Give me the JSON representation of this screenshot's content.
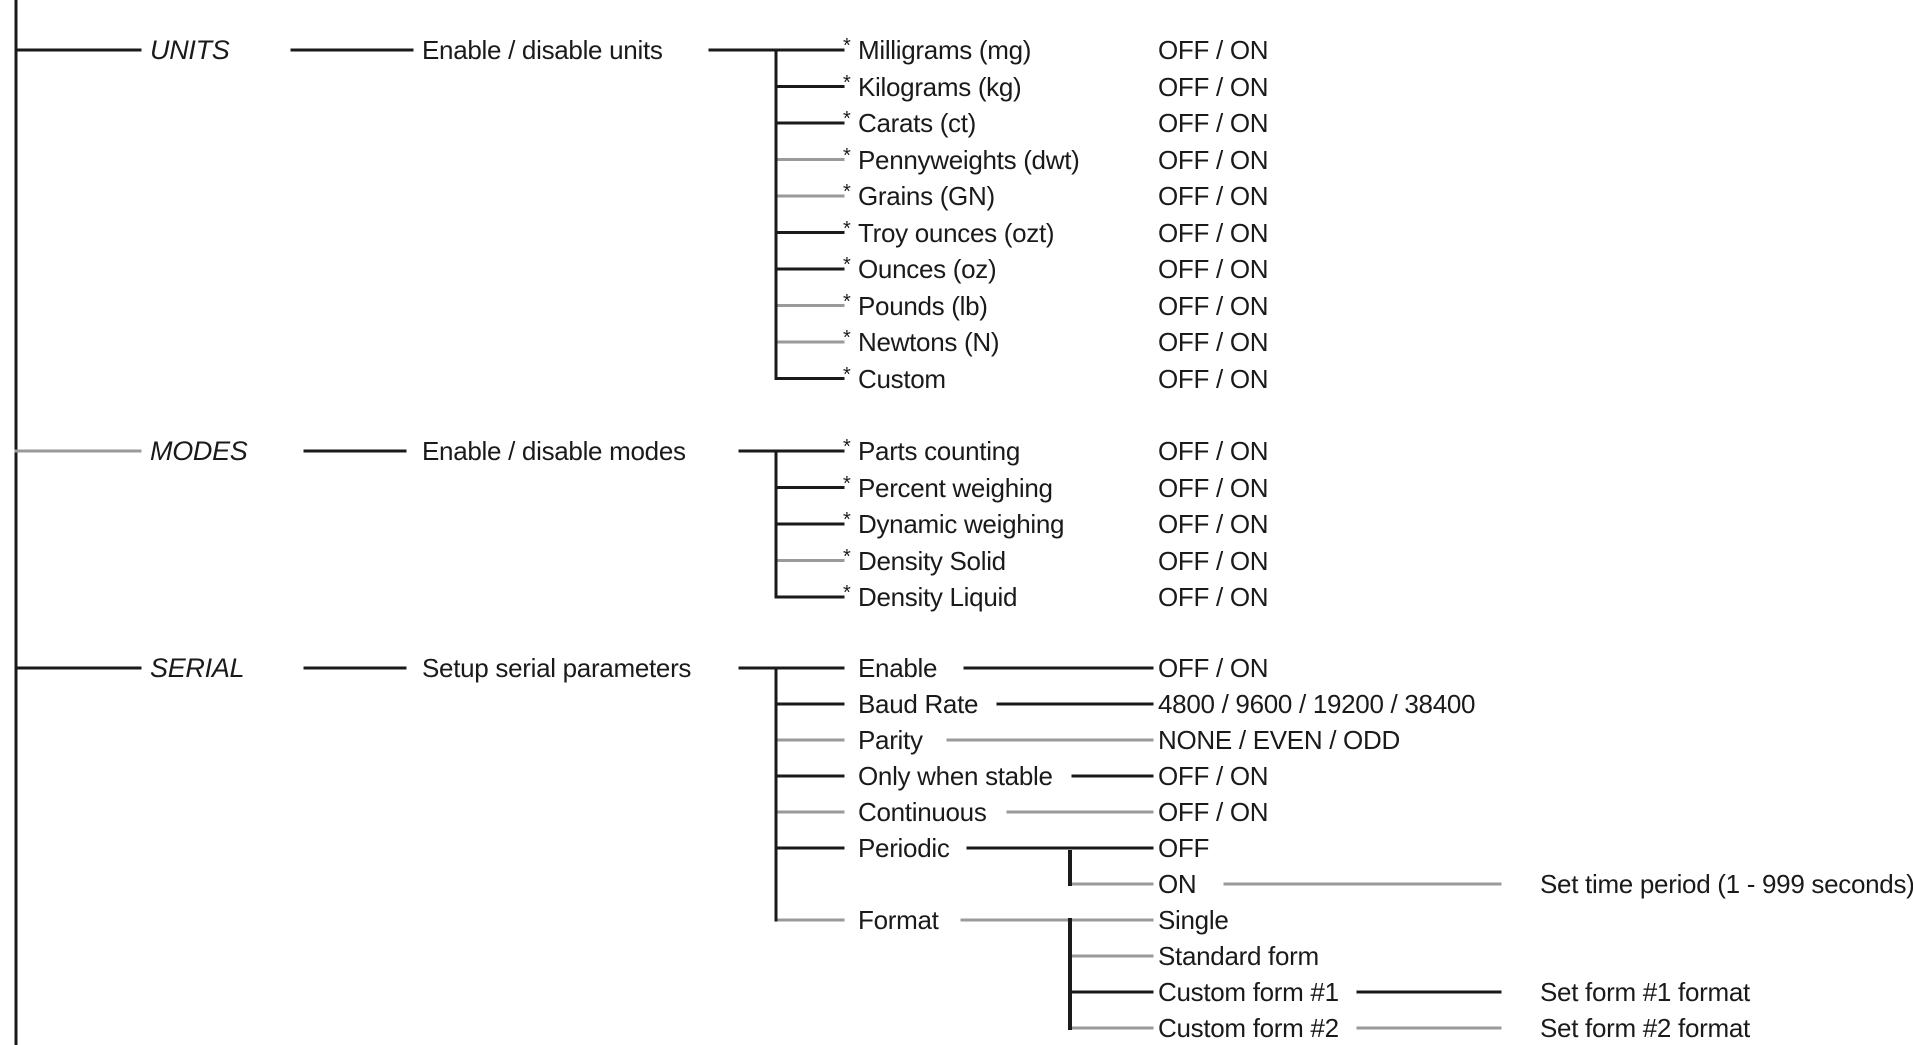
{
  "sections": [
    {
      "category": "UNITS",
      "description": "Enable / disable units",
      "items": [
        {
          "label": "Milligrams (mg)",
          "value": "OFF / ON"
        },
        {
          "label": "Kilograms (kg)",
          "value": "OFF / ON"
        },
        {
          "label": "Carats (ct)",
          "value": "OFF / ON"
        },
        {
          "label": "Pennyweights (dwt)",
          "value": "OFF / ON"
        },
        {
          "label": "Grains (GN)",
          "value": "OFF / ON"
        },
        {
          "label": "Troy ounces (ozt)",
          "value": "OFF / ON"
        },
        {
          "label": "Ounces (oz)",
          "value": "OFF / ON"
        },
        {
          "label": "Pounds (lb)",
          "value": "OFF / ON"
        },
        {
          "label": "Newtons (N)",
          "value": "OFF / ON"
        },
        {
          "label": "Custom",
          "value": "OFF / ON"
        }
      ]
    },
    {
      "category": "MODES",
      "description": "Enable / disable modes",
      "items": [
        {
          "label": "Parts counting",
          "value": "OFF / ON"
        },
        {
          "label": "Percent weighing",
          "value": "OFF / ON"
        },
        {
          "label": "Dynamic weighing",
          "value": "OFF / ON"
        },
        {
          "label": "Density Solid",
          "value": "OFF / ON"
        },
        {
          "label": "Density Liquid",
          "value": "OFF / ON"
        }
      ]
    },
    {
      "category": "SERIAL",
      "description": "Setup serial parameters",
      "items": [
        {
          "label": "Enable",
          "value": "OFF / ON"
        },
        {
          "label": "Baud Rate",
          "value": "4800 / 9600 / 19200 / 38400"
        },
        {
          "label": "Parity",
          "value": "NONE / EVEN / ODD"
        },
        {
          "label": "Only when stable",
          "value": "OFF / ON"
        },
        {
          "label": "Continuous",
          "value": "OFF / ON"
        },
        {
          "label": "Periodic",
          "options": [
            {
              "label": "OFF"
            },
            {
              "label": "ON",
              "action": "Set time period (1 - 999 seconds)"
            }
          ]
        },
        {
          "label": "Format",
          "options": [
            {
              "label": "Single"
            },
            {
              "label": "Standard form"
            },
            {
              "label": "Custom form #1",
              "action": "Set form #1 format"
            },
            {
              "label": "Custom form #2",
              "action": "Set form #2 format"
            }
          ]
        }
      ]
    }
  ],
  "marker": "*",
  "colors": {
    "line": "#1a1a1a",
    "line_light": "#9a9a9a",
    "text": "#1a1a1a"
  }
}
